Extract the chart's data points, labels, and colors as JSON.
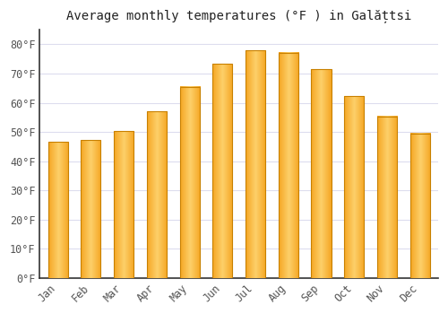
{
  "title": "Average monthly temperatures (°F ) in Galățtsi",
  "months": [
    "Jan",
    "Feb",
    "Mar",
    "Apr",
    "May",
    "Jun",
    "Jul",
    "Aug",
    "Sep",
    "Oct",
    "Nov",
    "Dec"
  ],
  "values": [
    46.5,
    47.3,
    50.2,
    57.0,
    65.5,
    73.3,
    77.9,
    77.2,
    71.4,
    62.4,
    55.4,
    49.5
  ],
  "bar_color_left": "#F5A623",
  "bar_color_center": "#FDD06A",
  "bar_color_right": "#F5A623",
  "background_color": "#FFFFFF",
  "plot_bg_color": "#FFFFFF",
  "grid_color": "#DDDDEE",
  "text_color": "#555555",
  "axis_color": "#333333",
  "yticks": [
    0,
    10,
    20,
    30,
    40,
    50,
    60,
    70,
    80
  ],
  "ylim": [
    0,
    85
  ],
  "title_fontsize": 10,
  "tick_fontsize": 8.5,
  "font_family": "monospace"
}
